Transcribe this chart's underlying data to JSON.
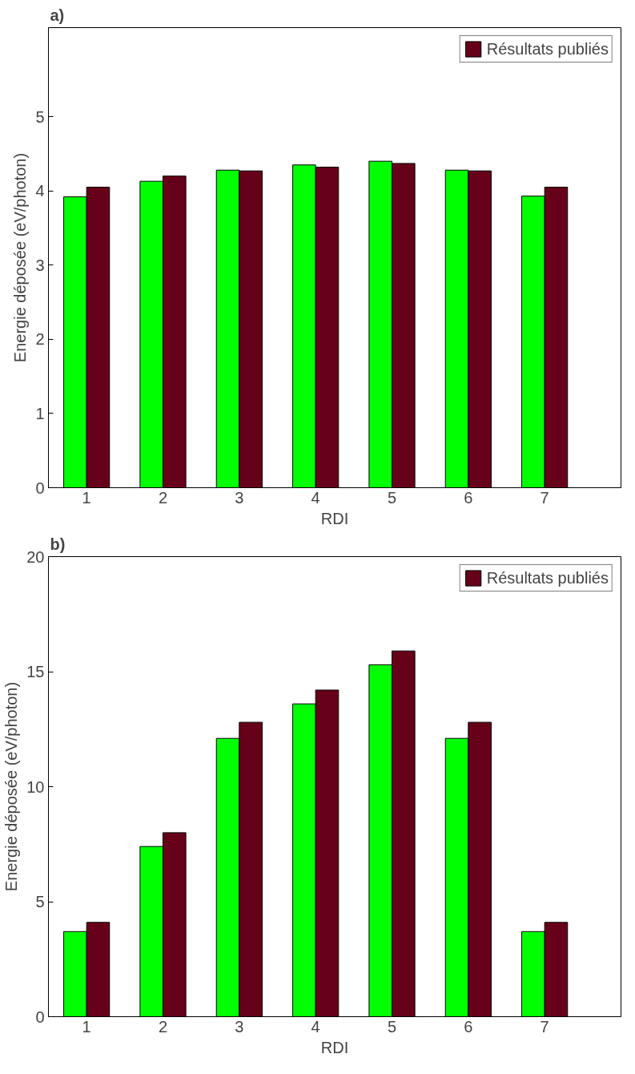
{
  "chart_data": [
    {
      "type": "bar",
      "title": "a)",
      "xlabel": "RDI",
      "ylabel": "Energie déposée (eV/photon)",
      "x": [
        1,
        2,
        3,
        4,
        5,
        6,
        7
      ],
      "xlim": [
        0.5,
        8
      ],
      "xticks": [
        1,
        2,
        3,
        4,
        5,
        6,
        7
      ],
      "ylim": [
        0,
        6.2
      ],
      "yticks": [
        0,
        1,
        2,
        3,
        4,
        5
      ],
      "legend": "top right",
      "series": [
        {
          "color": "#00ff00",
          "values": [
            3.92,
            4.13,
            4.28,
            4.35,
            4.4,
            4.28,
            3.93
          ]
        },
        {
          "name": "Résultats publiés",
          "color": "#660019",
          "values": [
            4.05,
            4.2,
            4.27,
            4.32,
            4.37,
            4.27,
            4.05
          ]
        }
      ]
    },
    {
      "type": "bar",
      "title": "b)",
      "xlabel": "RDI",
      "ylabel": "Energie déposée (eV/photon)",
      "x": [
        1,
        2,
        3,
        4,
        5,
        6,
        7
      ],
      "xlim": [
        0.5,
        8
      ],
      "xticks": [
        1,
        2,
        3,
        4,
        5,
        6,
        7
      ],
      "ylim": [
        0,
        20
      ],
      "yticks": [
        0,
        5,
        10,
        15,
        20
      ],
      "legend": "top right",
      "series": [
        {
          "color": "#00ff00",
          "values": [
            3.7,
            7.4,
            12.1,
            13.6,
            15.3,
            12.1,
            3.7
          ]
        },
        {
          "name": "Résultats publiés",
          "color": "#660019",
          "values": [
            4.1,
            8.0,
            12.8,
            14.2,
            15.9,
            12.8,
            4.1
          ]
        }
      ]
    }
  ]
}
